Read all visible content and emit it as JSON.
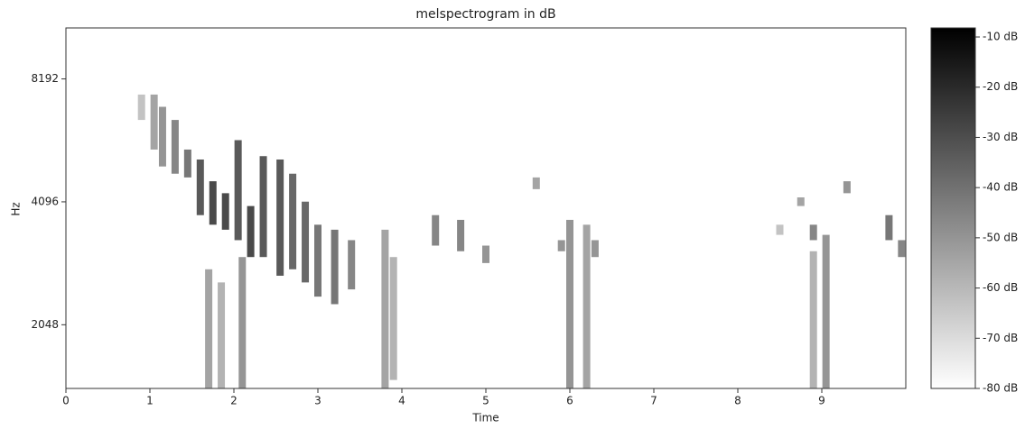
{
  "chart_data": {
    "type": "spectrogram",
    "title": "melspectrogram in dB",
    "xlabel": "Time",
    "ylabel": "Hz",
    "xlim": [
      0,
      10
    ],
    "xticks": [
      0,
      1,
      2,
      3,
      4,
      5,
      6,
      7,
      8,
      9
    ],
    "ylim": [
      1430,
      10920
    ],
    "yscale": "log2",
    "yticks": [
      2048,
      4096,
      8192
    ],
    "clim": [
      -80,
      -8.2
    ],
    "colorbar_ticks": [
      {
        "value": -10,
        "label": "-10 dB"
      },
      {
        "value": -20,
        "label": "-20 dB"
      },
      {
        "value": -30,
        "label": "-30 dB"
      },
      {
        "value": -40,
        "label": "-40 dB"
      },
      {
        "value": -50,
        "label": "-50 dB"
      },
      {
        "value": -60,
        "label": "-60 dB"
      },
      {
        "value": -70,
        "label": "-70 dB"
      },
      {
        "value": -80,
        "label": "-80 dB"
      }
    ],
    "time": [
      0.9,
      1.05,
      1.15,
      1.3,
      1.45,
      1.6,
      1.75,
      1.9,
      2.05,
      2.2,
      2.35,
      2.55,
      2.7,
      2.85,
      3.0,
      3.2,
      3.4,
      1.7,
      1.85,
      2.1,
      3.8,
      3.9,
      6.0,
      6.2,
      8.9,
      9.05,
      4.4,
      4.7,
      5.0,
      5.6,
      5.9,
      6.3,
      8.5,
      8.75,
      8.9,
      9.3,
      9.8,
      9.95
    ],
    "freq_low": [
      6500,
      5500,
      5000,
      4800,
      4700,
      3800,
      3600,
      3500,
      3300,
      3000,
      3000,
      2700,
      2800,
      2600,
      2400,
      2300,
      2500,
      1430,
      1430,
      1430,
      1430,
      1500,
      1430,
      1430,
      1430,
      1430,
      3200,
      3100,
      2900,
      4400,
      3100,
      3000,
      3400,
      4000,
      3300,
      4300,
      3300,
      3000
    ],
    "freq_high": [
      7500,
      7500,
      7000,
      6500,
      5500,
      5200,
      4600,
      4300,
      5800,
      4000,
      5300,
      5200,
      4800,
      4100,
      3600,
      3500,
      3300,
      2800,
      2600,
      3000,
      3500,
      3000,
      3700,
      3600,
      3100,
      3400,
      3800,
      3700,
      3200,
      4700,
      3300,
      3300,
      3600,
      4200,
      3600,
      4600,
      3800,
      3300
    ],
    "level_db": [
      -60,
      -50,
      -45,
      -40,
      -35,
      -25,
      -20,
      -20,
      -25,
      -20,
      -25,
      -25,
      -30,
      -30,
      -35,
      -35,
      -40,
      -50,
      -55,
      -45,
      -50,
      -55,
      -45,
      -50,
      -55,
      -45,
      -40,
      -40,
      -45,
      -50,
      -45,
      -45,
      -60,
      -50,
      -40,
      -45,
      -35,
      -40
    ]
  }
}
